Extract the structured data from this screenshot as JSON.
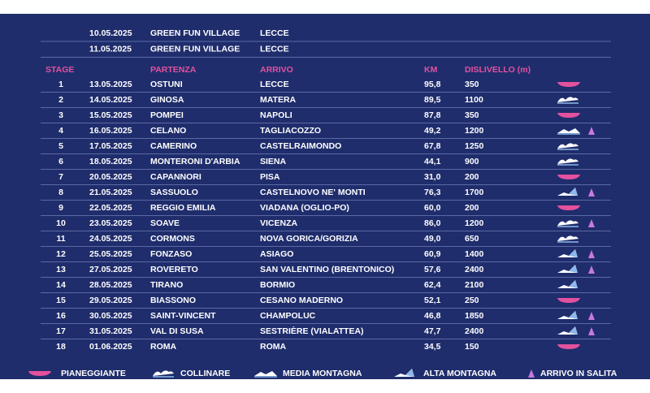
{
  "pre_rows": [
    [
      "10.05.2025",
      "GREEN FUN VILLAGE",
      "LECCE"
    ],
    [
      "11.05.2025",
      "GREEN FUN VILLAGE",
      "LECCE"
    ]
  ],
  "table": {
    "header": [
      "STAGE",
      "PARTENZA",
      "ARRIVO",
      "KM",
      "DISLIVELLO (m)"
    ],
    "rows": [
      [
        "1",
        "13.05.2025",
        "OSTUNI",
        "LECCE",
        "95,8",
        "350"
      ],
      [
        "2",
        "14.05.2025",
        "GINOSA",
        "MATERA",
        "89,5",
        "1100"
      ],
      [
        "3",
        "15.05.2025",
        "POMPEI",
        "NAPOLI",
        "87,8",
        "350"
      ],
      [
        "4",
        "16.05.2025",
        "CELANO",
        "TAGLIACOZZO",
        "49,2",
        "1200"
      ],
      [
        "5",
        "17.05.2025",
        "CAMERINO",
        "CASTELRAIMONDO",
        "67,8",
        "1250"
      ],
      [
        "6",
        "18.05.2025",
        "MONTERONI D'ARBIA",
        "SIENA",
        "44,1",
        "900"
      ],
      [
        "7",
        "20.05.2025",
        "CAPANNORI",
        "PISA",
        "31,0",
        "200"
      ],
      [
        "8",
        "21.05.2025",
        "SASSUOLO",
        "CASTELNOVO NE' MONTI",
        "76,3",
        "1700"
      ],
      [
        "9",
        "22.05.2025",
        "REGGIO EMILIA",
        "VIADANA (OGLIO-PO)",
        "60,0",
        "200"
      ],
      [
        "10",
        "23.05.2025",
        "SOAVE",
        "VICENZA",
        "86,0",
        "1200"
      ],
      [
        "11",
        "24.05.2025",
        "CORMONS",
        "NOVA GORICA/GORIZIA",
        "49,0",
        "650"
      ],
      [
        "12",
        "25.05.2025",
        "FONZASO",
        "ASIAGO",
        "60,9",
        "1400"
      ],
      [
        "13",
        "27.05.2025",
        "ROVERETO",
        "SAN VALENTINO (BRENTONICO)",
        "57,6",
        "2400"
      ],
      [
        "14",
        "28.05.2025",
        "TIRANO",
        "BORMIO",
        "62,4",
        "2100"
      ],
      [
        "15",
        "29.05.2025",
        "BIASSONO",
        "CESANO MADERNO",
        "52,1",
        "250"
      ],
      [
        "16",
        "30.05.2025",
        "SAINT-VINCENT",
        "CHAMPOLUC",
        "46,8",
        "1850"
      ],
      [
        "17",
        "31.05.2025",
        "VAL DI SUSA",
        "SESTRIÈRE (VIALATTEA)",
        "47,7",
        "2400"
      ],
      [
        "18",
        "01.06.2025",
        "ROMA",
        "ROMA",
        "34,5",
        "150"
      ]
    ]
  },
  "legend": [
    "PIANEGGIANTE",
    "COLLINARE",
    "MEDIA MONTAGNA",
    "ALTA MONTAGNA",
    "ARRIVO IN SALITA"
  ]
}
